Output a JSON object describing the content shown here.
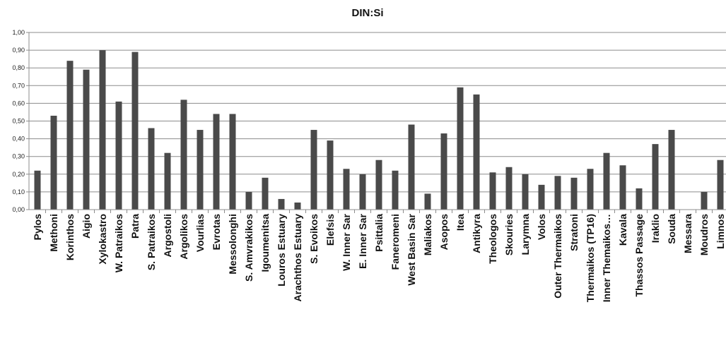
{
  "chart_data": {
    "type": "bar",
    "title": "DIN:Si",
    "xlabel": "",
    "ylabel": "",
    "ylim": [
      0,
      1.0
    ],
    "yticks": [
      "0,00",
      "0,10",
      "0,20",
      "0,30",
      "0,40",
      "0,50",
      "0,60",
      "0,70",
      "0,80",
      "0,90",
      "1,00"
    ],
    "grid": true,
    "legend": "none",
    "bar_color": "#4a4a4a",
    "categories": [
      "Pylos",
      "Methoni",
      "Korinthos",
      "Aigio",
      "Xylokastro",
      "W. Patraikos",
      "Patra",
      "S. Patraikos",
      "Argostoli",
      "Argolikos",
      "Vourlias",
      "Evrotas",
      "Messolonghi",
      "S. Amvrakikos",
      "Igoumenitsa",
      "Louros Estuary",
      "Arachthos Estuary",
      "S. Evoikos",
      "Elefsis",
      "W. Inner Sar",
      "E. Inner Sar",
      "Psittalia",
      "Faneromeni",
      "West Basin Sar",
      "Maliakos",
      "Asopos",
      "Itea",
      "Antikyra",
      "Theologos",
      "Skouries",
      "Larymna",
      "Volos",
      "Outer Thermaikos",
      "Stratoni",
      "Thermaikos (TP16)",
      "Inner Themaikos…",
      "Kavala",
      "Thassos Passage",
      "Iraklio",
      "Souda",
      "Messara",
      "Moudros",
      "Limnos"
    ],
    "values": [
      0.22,
      0.53,
      0.84,
      0.79,
      0.9,
      0.61,
      0.89,
      0.46,
      0.32,
      0.62,
      0.45,
      0.54,
      0.54,
      0.1,
      0.18,
      0.06,
      0.04,
      0.45,
      0.39,
      0.23,
      0.2,
      0.28,
      0.22,
      0.48,
      0.09,
      0.43,
      0.69,
      0.65,
      0.21,
      0.24,
      0.2,
      0.14,
      0.19,
      0.18,
      0.23,
      0.32,
      0.25,
      0.12,
      0.37,
      0.45,
      0.0,
      0.1,
      0.28
    ]
  }
}
